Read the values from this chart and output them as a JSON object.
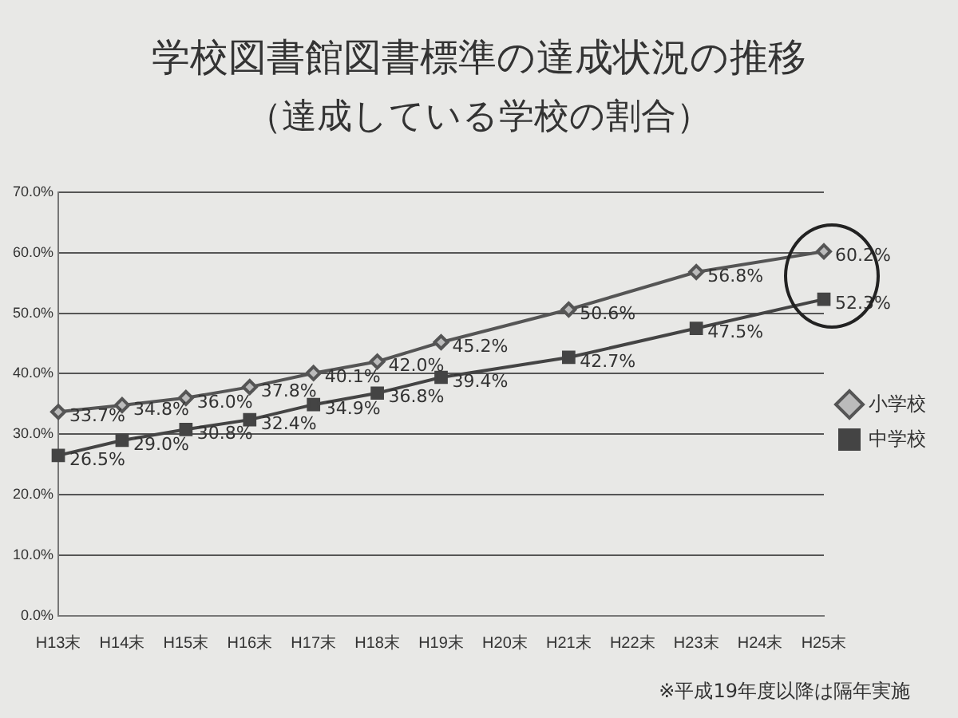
{
  "chart_data": {
    "type": "line",
    "title": "学校図書館図書標準の達成状況の推移",
    "subtitle": "（達成している学校の割合）",
    "categories": [
      "H13末",
      "H14末",
      "H15末",
      "H16末",
      "H17末",
      "H18末",
      "H19末",
      "H20末",
      "H21末",
      "H22末",
      "H23末",
      "H24末",
      "H25末"
    ],
    "series": [
      {
        "name": "小学校",
        "color": "#555555",
        "marker": "diamond",
        "values": [
          33.7,
          34.8,
          36.0,
          37.8,
          40.1,
          42.0,
          45.2,
          null,
          50.6,
          null,
          56.8,
          null,
          60.2
        ],
        "value_labels": [
          "33.7%",
          "34.8%",
          "36.0%",
          "37.8%",
          "40.1%",
          "42.0%",
          "45.2%",
          null,
          "50.6%",
          null,
          "56.8%",
          null,
          "60.2%"
        ]
      },
      {
        "name": "中学校",
        "color": "#444444",
        "marker": "square",
        "values": [
          26.5,
          29.0,
          30.8,
          32.4,
          34.9,
          36.8,
          39.4,
          null,
          42.7,
          null,
          47.5,
          null,
          52.3
        ],
        "value_labels": [
          "26.5%",
          "29.0%",
          "30.8%",
          "32.4%",
          "34.9%",
          "36.8%",
          "39.4%",
          null,
          "42.7%",
          null,
          "47.5%",
          null,
          "52.3%"
        ]
      }
    ],
    "ylim": [
      0,
      70
    ],
    "yticks": [
      {
        "value": 0,
        "label": "0.0%"
      },
      {
        "value": 10,
        "label": "10.0%"
      },
      {
        "value": 20,
        "label": "20.0%"
      },
      {
        "value": 30,
        "label": "30.0%"
      },
      {
        "value": 40,
        "label": "40.0%"
      },
      {
        "value": 50,
        "label": "50.0%"
      },
      {
        "value": 60,
        "label": "60.0%"
      },
      {
        "value": 70,
        "label": "70.0%"
      }
    ],
    "grid": "y",
    "legend": "right",
    "line_style": "solid",
    "annotations": [
      "※平成19年度以降は隔年実施"
    ]
  }
}
